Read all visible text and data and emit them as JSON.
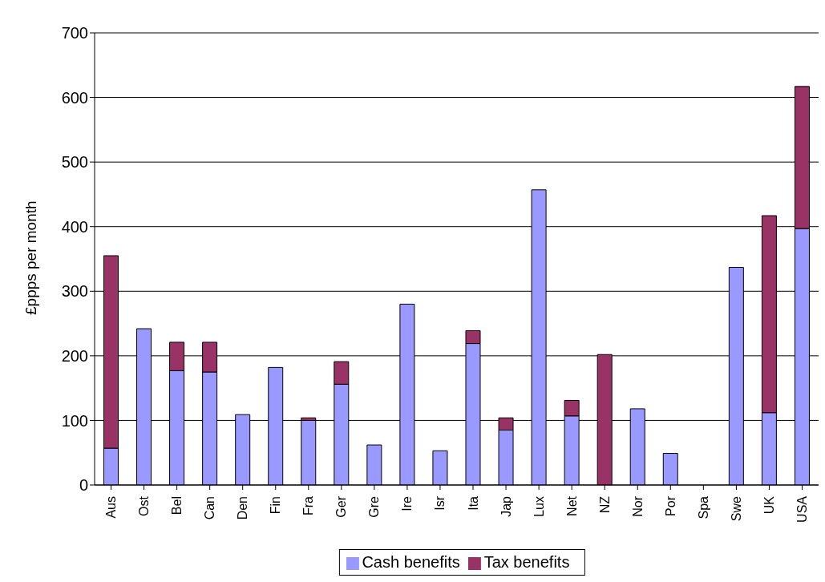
{
  "chart_data": {
    "type": "bar",
    "stacked": true,
    "ylabel": "£ppps per month",
    "categories": [
      "Aus",
      "Ost",
      "Bel",
      "Can",
      "Den",
      "Fin",
      "Fra",
      "Ger",
      "Gre",
      "Ire",
      "Isr",
      "Ita",
      "Jap",
      "Lux",
      "Net",
      "NZ",
      "Nor",
      "Por",
      "Spa",
      "Swe",
      "UK",
      "USA"
    ],
    "series": [
      {
        "name": "Cash benefits",
        "color": "#9999ff",
        "values": [
          57,
          242,
          177,
          175,
          109,
          182,
          100,
          156,
          62,
          280,
          53,
          219,
          85,
          457,
          107,
          0,
          118,
          49,
          0,
          337,
          112,
          397
        ]
      },
      {
        "name": "Tax benefits",
        "color": "#993366",
        "values": [
          298,
          0,
          44,
          46,
          0,
          0,
          4,
          35,
          0,
          0,
          0,
          20,
          19,
          0,
          24,
          202,
          0,
          0,
          0,
          0,
          305,
          220
        ]
      }
    ],
    "ylim": [
      0,
      700
    ],
    "yticks": [
      0,
      100,
      200,
      300,
      400,
      500,
      600,
      700
    ],
    "grid": "y",
    "legend": "bottom"
  }
}
